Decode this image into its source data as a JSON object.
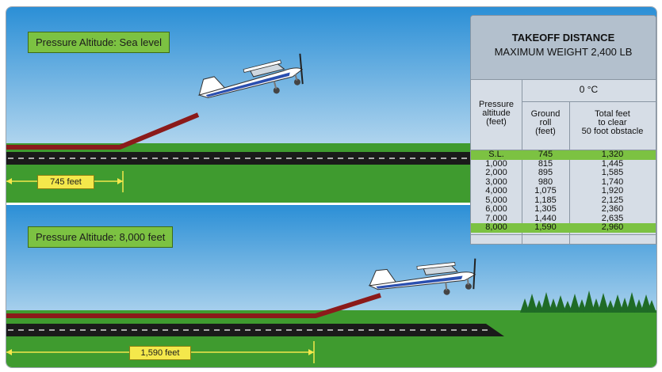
{
  "top_panel": {
    "altitude_label": "Pressure Altitude: Sea level",
    "distance_label": "745 feet"
  },
  "bottom_panel": {
    "altitude_label": "Pressure Altitude: 8,000 feet",
    "distance_label": "1,590 feet"
  },
  "table": {
    "title": "TAKEOFF DISTANCE",
    "subtitle": "MAXIMUM WEIGHT 2,400 LB",
    "temperature_header": "0 °C",
    "col_headers": {
      "pressure_altitude": [
        "Pressure",
        "altitude",
        "(feet)"
      ],
      "ground_roll": [
        "Ground",
        "roll",
        "(feet)"
      ],
      "total": [
        "Total feet",
        "to clear",
        "50 foot obstacle"
      ]
    },
    "rows": [
      {
        "altitude": "S.L.",
        "ground_roll": "745",
        "total": "1,320",
        "highlight": true
      },
      {
        "altitude": "1,000",
        "ground_roll": "815",
        "total": "1,445",
        "highlight": false
      },
      {
        "altitude": "2,000",
        "ground_roll": "895",
        "total": "1,585",
        "highlight": false
      },
      {
        "altitude": "3,000",
        "ground_roll": "980",
        "total": "1,740",
        "highlight": false
      },
      {
        "altitude": "4,000",
        "ground_roll": "1,075",
        "total": "1,920",
        "highlight": false
      },
      {
        "altitude": "5,000",
        "ground_roll": "1,185",
        "total": "2,125",
        "highlight": false
      },
      {
        "altitude": "6,000",
        "ground_roll": "1,305",
        "total": "2,360",
        "highlight": false
      },
      {
        "altitude": "7,000",
        "ground_roll": "1,440",
        "total": "2,635",
        "highlight": false
      },
      {
        "altitude": "8,000",
        "ground_roll": "1,590",
        "total": "2,960",
        "highlight": true
      }
    ]
  },
  "colors": {
    "sky_top": "#2b8fd6",
    "sky_bottom": "#e8f2f8",
    "grass": "#3f9b2f",
    "runway": "#1a1a1a",
    "takeoff_path": "#8b1a1a",
    "label_green": "#7cc242",
    "label_yellow": "#f4e84b"
  }
}
